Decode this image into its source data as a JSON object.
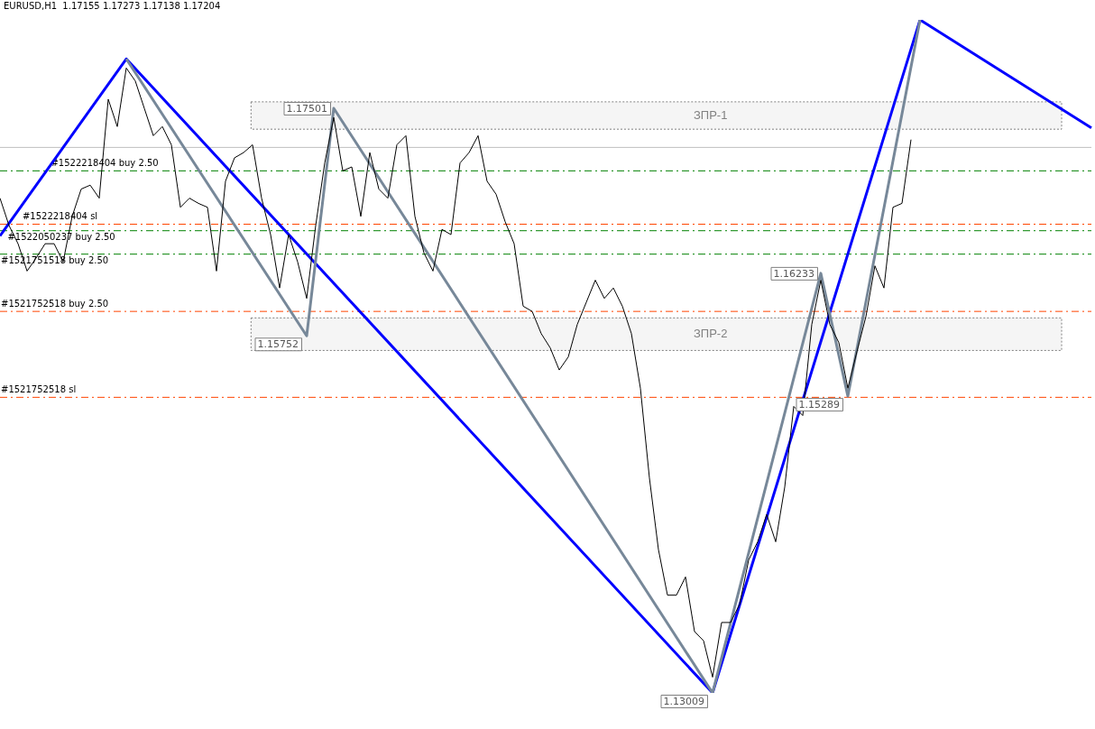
{
  "chart_data": {
    "type": "line",
    "title": "EURUSD,H1  1.17155 1.17273 1.17138 1.17204",
    "tick_labels": false,
    "marker": "none",
    "categories": [
      null,
      null,
      null,
      null,
      null,
      null,
      null,
      null,
      null,
      null,
      null,
      null,
      null,
      null,
      null,
      null,
      null,
      null,
      null,
      null,
      null,
      null,
      null,
      null,
      null,
      null,
      null,
      null,
      null,
      null,
      null,
      null,
      null,
      null,
      null,
      null,
      null,
      null,
      null,
      null,
      null,
      null,
      null,
      null,
      null,
      null,
      null,
      null,
      null,
      null,
      null,
      null,
      null,
      null,
      null,
      null,
      null,
      null,
      null,
      null,
      null,
      null,
      null,
      null,
      null,
      null,
      null,
      null,
      null,
      null,
      null,
      null,
      null,
      null,
      null,
      null,
      null,
      null,
      null,
      null,
      null,
      null,
      null,
      null,
      null,
      null,
      null,
      null,
      null,
      null,
      null,
      null,
      null,
      null,
      null,
      null,
      null,
      null,
      null,
      null,
      null,
      null,
      null,
      null,
      null,
      null,
      null,
      null,
      null,
      null,
      null,
      null,
      null,
      null,
      null,
      null,
      null,
      null,
      null,
      null,
      null,
      null
    ],
    "series": [
      {
        "color": "#000000",
        "values": [
          1.1681,
          1.166,
          1.1646,
          1.1625,
          1.1635,
          1.1646,
          1.1646,
          1.1632,
          1.1667,
          1.1688,
          1.1691,
          1.1681,
          1.1757,
          1.1736,
          1.1781,
          1.1771,
          1.175,
          1.1729,
          1.1736,
          1.1722,
          1.1674,
          1.1681,
          1.1677,
          1.1674,
          1.1625,
          1.1694,
          1.1712,
          1.1716,
          1.1722,
          1.1681,
          1.1653,
          1.1612,
          1.1653,
          1.1632,
          1.1604,
          1.166,
          1.1708,
          1.1743,
          1.1702,
          1.1705,
          1.1667,
          1.1716,
          1.1688,
          1.1681,
          1.1722,
          1.1729,
          1.1667,
          1.1639,
          1.1625,
          1.1657,
          1.1653,
          1.1708,
          1.1716,
          1.1729,
          1.1694,
          1.1684,
          1.1663,
          1.1646,
          1.1598,
          1.1594,
          1.1577,
          1.1566,
          1.1549,
          1.1559,
          1.1584,
          1.1601,
          1.1618,
          1.1604,
          1.1612,
          1.1598,
          1.1577,
          1.1535,
          1.1466,
          1.1411,
          1.1376,
          1.1376,
          1.139,
          1.1348,
          1.1341,
          1.1313,
          1.1355,
          1.1355,
          1.1369,
          1.1403,
          1.1417,
          1.1438,
          1.1417,
          1.1459,
          1.1521,
          1.1514,
          1.1584,
          1.1618,
          1.1584,
          1.157,
          1.1535,
          1.1563,
          1.159,
          1.1629,
          1.1612,
          1.1674,
          1.1677,
          1.1726,
          null,
          null,
          null,
          null,
          null,
          null,
          null,
          null,
          null,
          null,
          null,
          null,
          null,
          null,
          null,
          null,
          null,
          null,
          null,
          null
        ]
      },
      {
        "color": "#778899",
        "value_labels": [
          null,
          null,
          null,
          null,
          null,
          null,
          null,
          null,
          null,
          null,
          null,
          null,
          null,
          null,
          null,
          null,
          null,
          null,
          null,
          null,
          null,
          null,
          null,
          null,
          null,
          null,
          null,
          null,
          null,
          null,
          null,
          null,
          null,
          null,
          "1.15752",
          null,
          null,
          "1.17501",
          null,
          null,
          null,
          null,
          null,
          null,
          null,
          null,
          null,
          null,
          null,
          null,
          null,
          null,
          null,
          null,
          null,
          null,
          null,
          null,
          null,
          null,
          null,
          null,
          null,
          null,
          null,
          null,
          null,
          null,
          null,
          null,
          null,
          null,
          null,
          null,
          null,
          null,
          null,
          null,
          null,
          "1.13009",
          null,
          null,
          null,
          null,
          null,
          null,
          null,
          null,
          null,
          null,
          null,
          "1.16233",
          null,
          null,
          "1.15289",
          null,
          null,
          null,
          null,
          null,
          null,
          null,
          null,
          null,
          null,
          null,
          null,
          null,
          null,
          null,
          null,
          null,
          null,
          null,
          null,
          null,
          null,
          null,
          null,
          null,
          null,
          null
        ],
        "values": [
          null,
          null,
          null,
          null,
          null,
          null,
          null,
          null,
          null,
          null,
          null,
          null,
          null,
          null,
          1.1788,
          null,
          null,
          null,
          null,
          null,
          null,
          null,
          null,
          null,
          null,
          null,
          null,
          null,
          null,
          null,
          null,
          null,
          null,
          null,
          1.15752,
          null,
          null,
          1.17501,
          null,
          null,
          null,
          null,
          null,
          null,
          null,
          null,
          null,
          null,
          null,
          null,
          null,
          null,
          null,
          null,
          null,
          null,
          null,
          null,
          null,
          null,
          null,
          null,
          null,
          null,
          null,
          null,
          null,
          null,
          null,
          null,
          null,
          null,
          null,
          null,
          null,
          null,
          null,
          null,
          null,
          1.13009,
          null,
          null,
          null,
          null,
          null,
          null,
          null,
          null,
          null,
          null,
          null,
          1.16233,
          null,
          null,
          1.15289,
          null,
          null,
          null,
          null,
          null,
          null,
          null,
          1.1818,
          null,
          null,
          null,
          null,
          null,
          null,
          null,
          null,
          null,
          null,
          null,
          null,
          null,
          null,
          null,
          null,
          null,
          null,
          null
        ]
      },
      {
        "color": "#0000ff",
        "values": [
          1.1652,
          null,
          null,
          null,
          null,
          null,
          null,
          null,
          null,
          null,
          null,
          null,
          null,
          null,
          1.1788,
          null,
          null,
          null,
          null,
          null,
          null,
          null,
          null,
          null,
          null,
          null,
          null,
          null,
          null,
          null,
          null,
          null,
          null,
          null,
          null,
          null,
          null,
          null,
          null,
          null,
          null,
          null,
          null,
          null,
          null,
          null,
          null,
          null,
          null,
          null,
          null,
          null,
          null,
          null,
          null,
          null,
          null,
          null,
          null,
          null,
          null,
          null,
          null,
          null,
          null,
          null,
          null,
          null,
          null,
          null,
          null,
          null,
          null,
          null,
          null,
          null,
          null,
          null,
          null,
          1.13009,
          null,
          null,
          null,
          null,
          null,
          null,
          null,
          null,
          null,
          null,
          null,
          null,
          null,
          null,
          null,
          null,
          null,
          null,
          null,
          null,
          null,
          null,
          1.1818,
          null,
          null,
          null,
          null,
          null,
          null,
          null,
          null,
          null,
          null,
          null,
          null,
          null,
          null,
          null,
          null,
          null,
          null,
          1.1735
        ]
      }
    ],
    "ref_lines": [
      {
        "axis": "y",
        "value": 1.172,
        "color": "#c0c0c0",
        "line_style": "solid"
      },
      {
        "axis": "y",
        "value": 1.1702,
        "label": "#1522218404 buy 2.50",
        "color": "#008000",
        "line_style": "dashed"
      },
      {
        "axis": "y",
        "value": 1.1661,
        "label": "#1522218404 sl",
        "color": "#ff4500",
        "line_style": "dashed"
      },
      {
        "axis": "y",
        "value": 1.1656,
        "label": "#1522050237 buy 2.50",
        "color": "#008000",
        "line_style": "dashed"
      },
      {
        "axis": "y",
        "value": 1.1638,
        "label": "#1521751518 buy 2.50",
        "color": "#008000",
        "line_style": "dashed"
      },
      {
        "axis": "y",
        "value": 1.1594,
        "label": "#1521752518 buy 2.50",
        "color": "#ff4500",
        "line_style": "dashed"
      },
      {
        "axis": "y",
        "value": 1.1528,
        "label": "#1521752518 sl",
        "color": "#ff4500",
        "line_style": "dashed"
      }
    ],
    "bands": [
      {
        "axis": "y",
        "from": 1.1734,
        "to": 1.1755,
        "label": "ЗПР-1",
        "color": "#808080"
      },
      {
        "axis": "y",
        "from": 1.1564,
        "to": 1.1589,
        "label": "ЗПР-2",
        "color": "#808080"
      }
    ]
  }
}
